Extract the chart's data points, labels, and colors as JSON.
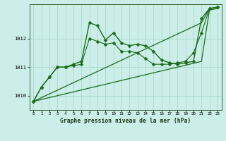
{
  "xlabel": "Graphe pression niveau de la mer (hPa)",
  "background_color": "#cceee8",
  "grid_color": "#aaddcc",
  "line_color": "#1a6b1a",
  "x_ticks": [
    0,
    1,
    2,
    3,
    4,
    5,
    6,
    7,
    8,
    9,
    10,
    11,
    12,
    13,
    14,
    15,
    16,
    17,
    18,
    19,
    20,
    21,
    22,
    23
  ],
  "ylim": [
    1009.5,
    1013.2
  ],
  "yticks": [
    1010,
    1011,
    1012
  ],
  "series": [
    {
      "x": [
        0,
        1,
        2,
        3,
        4,
        5,
        6,
        7,
        8,
        9,
        10,
        11,
        12,
        13,
        14,
        15,
        16,
        17,
        18,
        19,
        20,
        21,
        22,
        23
      ],
      "y": [
        1009.8,
        1010.3,
        1010.65,
        1011.0,
        1011.0,
        1011.1,
        1011.2,
        1012.55,
        1012.45,
        1011.95,
        1012.2,
        1011.85,
        1011.75,
        1011.8,
        1011.75,
        1011.55,
        1011.25,
        1011.15,
        1011.1,
        1011.15,
        1011.2,
        1012.7,
        1013.05,
        1013.1
      ],
      "marker": "D",
      "markersize": 2.5,
      "linewidth": 1.0
    },
    {
      "x": [
        0,
        1,
        2,
        3,
        4,
        5,
        6,
        7,
        8,
        9,
        10,
        11,
        12,
        13,
        14,
        15,
        16,
        17,
        18,
        19,
        20,
        21,
        22,
        23
      ],
      "y": [
        1009.8,
        1010.3,
        1010.65,
        1011.0,
        1011.0,
        1011.05,
        1011.1,
        1012.0,
        1011.9,
        1011.8,
        1011.85,
        1011.55,
        1011.55,
        1011.5,
        1011.3,
        1011.1,
        1011.1,
        1011.1,
        1011.15,
        1011.2,
        1011.5,
        1012.2,
        1013.05,
        1013.1
      ],
      "marker": "D",
      "markersize": 2.5,
      "linewidth": 0.8
    },
    {
      "x": [
        0,
        21,
        22,
        23
      ],
      "y": [
        1009.8,
        1012.55,
        1013.05,
        1013.1
      ],
      "marker": null,
      "markersize": 0,
      "linewidth": 0.9
    },
    {
      "x": [
        0,
        21,
        22,
        23
      ],
      "y": [
        1009.8,
        1011.2,
        1013.0,
        1013.05
      ],
      "marker": null,
      "markersize": 0,
      "linewidth": 0.9
    }
  ]
}
